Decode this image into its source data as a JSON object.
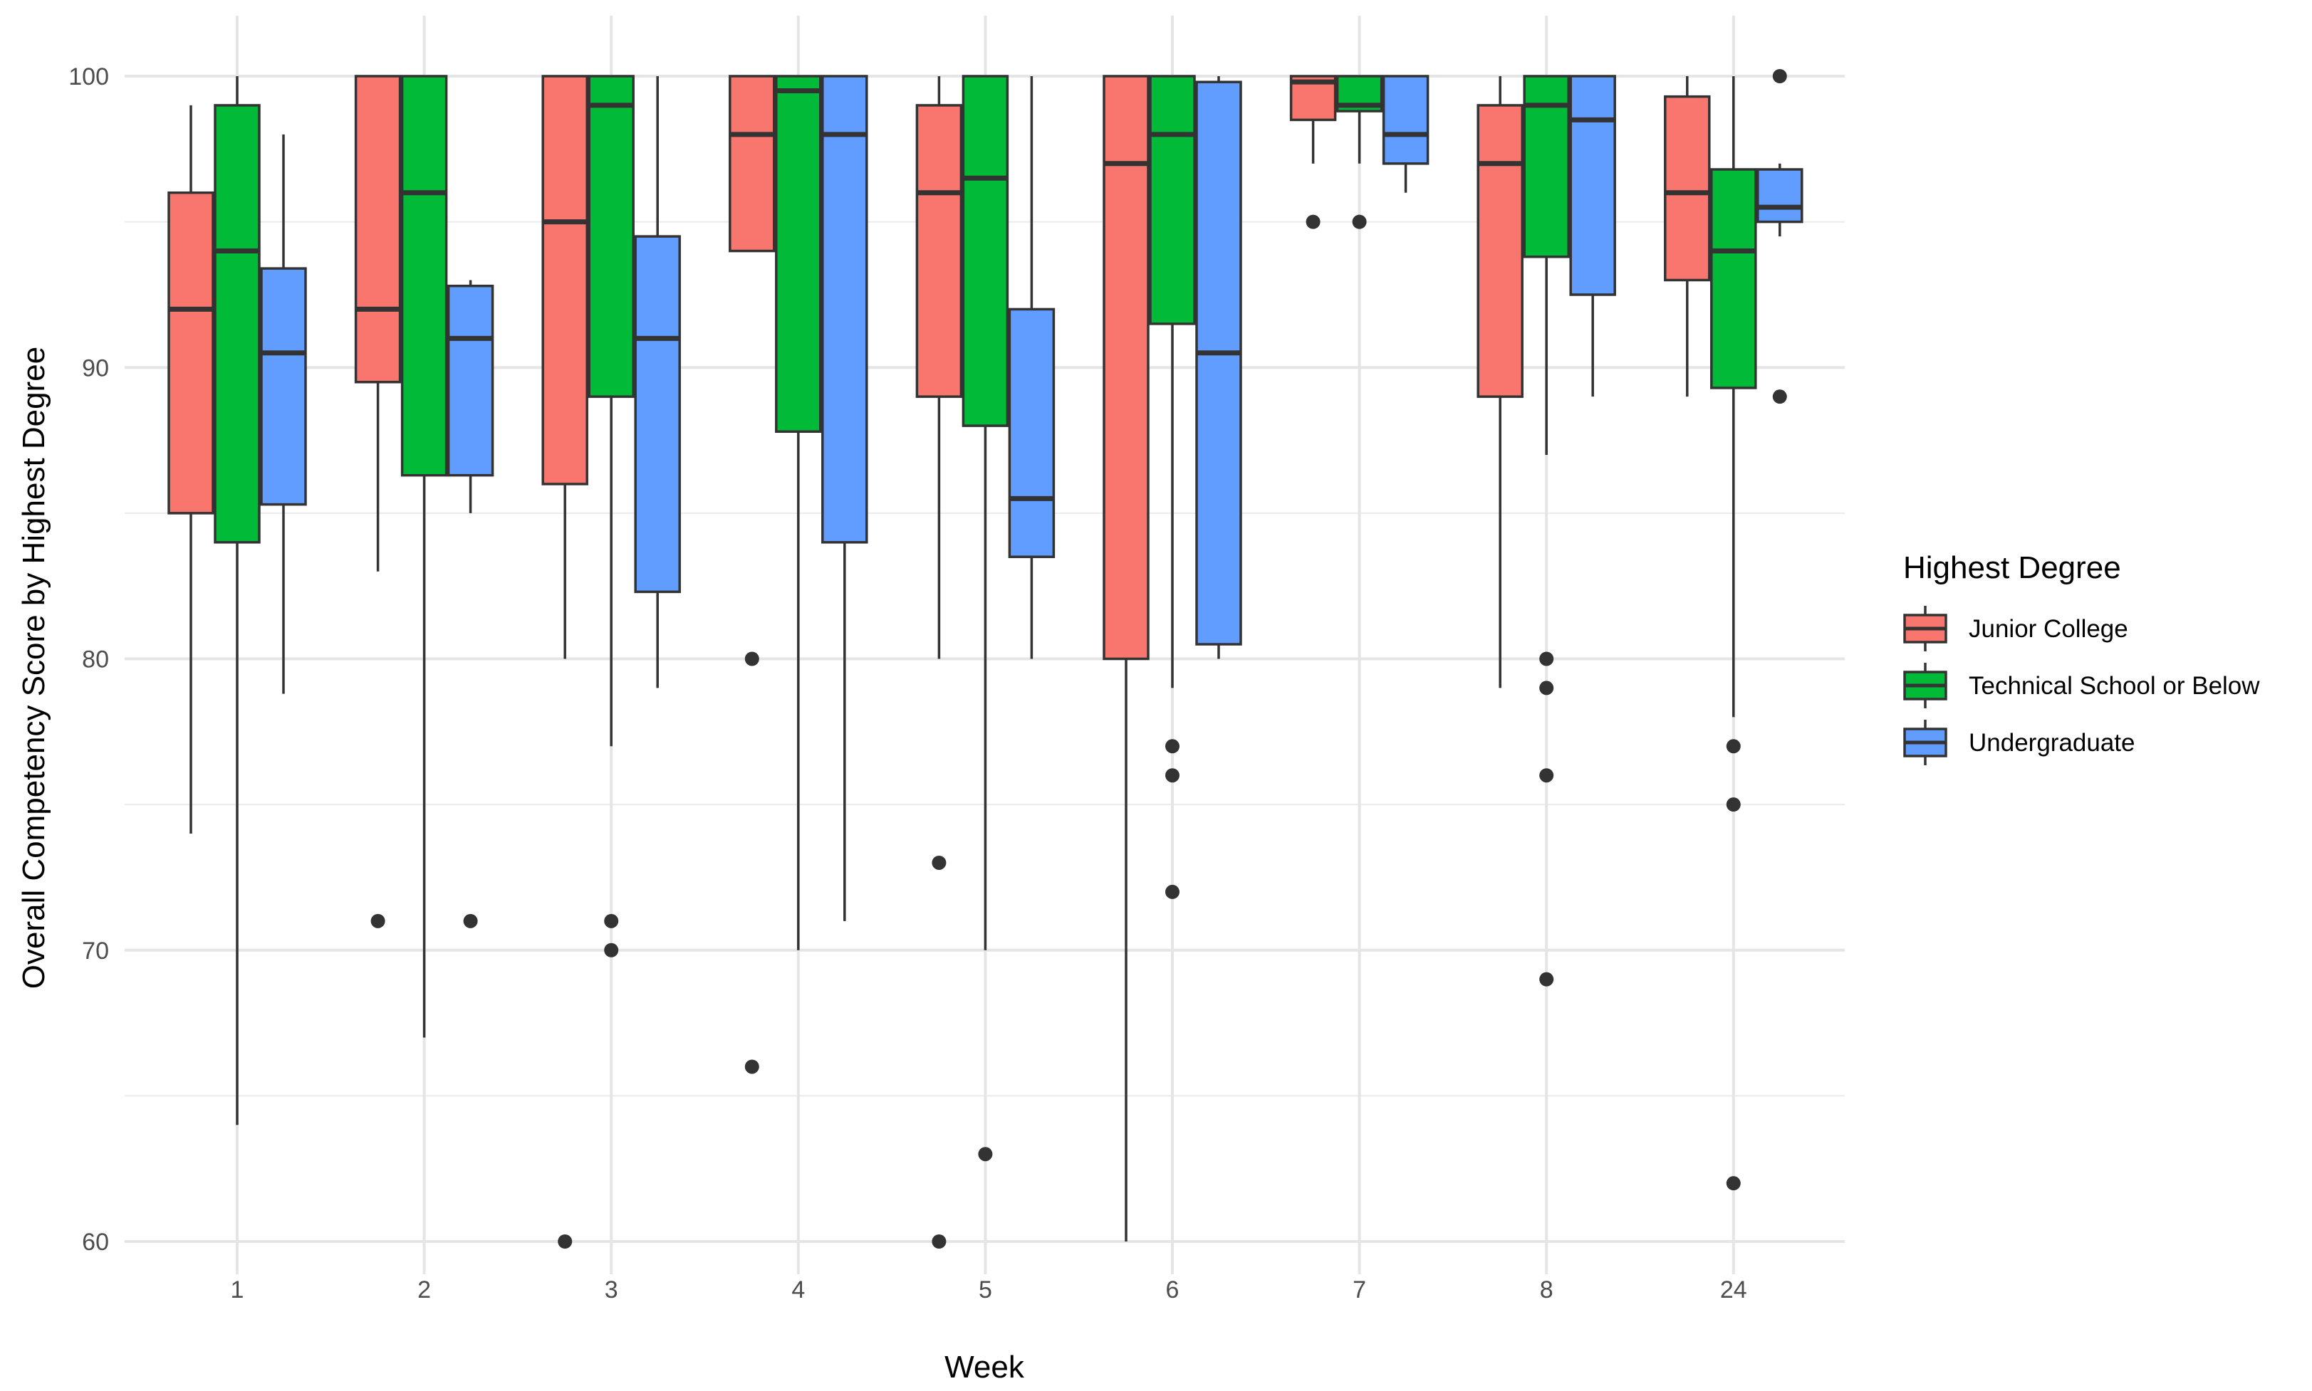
{
  "chart_data": {
    "type": "boxplot",
    "title": "",
    "xlabel": "Week",
    "ylabel": "Overall Competency Score by Highest Degree",
    "ylim": [
      58,
      102
    ],
    "yticks": [
      60,
      70,
      80,
      90,
      100
    ],
    "categories": [
      "1",
      "2",
      "3",
      "4",
      "5",
      "6",
      "7",
      "8",
      "24"
    ],
    "legend": {
      "title": "Highest Degree",
      "position": "right",
      "entries": [
        "Junior College",
        "Technical School or Below",
        "Undergraduate"
      ]
    },
    "series": [
      {
        "name": "Junior College",
        "color": "#F8766D",
        "boxes": [
          {
            "week": "1",
            "lower_whisker": 74,
            "q1": 85,
            "median": 92,
            "q3": 96,
            "upper_whisker": 99,
            "outliers": []
          },
          {
            "week": "2",
            "lower_whisker": 83,
            "q1": 89.5,
            "median": 92,
            "q3": 100,
            "upper_whisker": 100,
            "outliers": [
              71
            ]
          },
          {
            "week": "3",
            "lower_whisker": 80,
            "q1": 86,
            "median": 95,
            "q3": 100,
            "upper_whisker": 100,
            "outliers": [
              60
            ]
          },
          {
            "week": "4",
            "lower_whisker": 94,
            "q1": 94,
            "median": 98,
            "q3": 100,
            "upper_whisker": 100,
            "outliers": [
              80,
              66
            ]
          },
          {
            "week": "5",
            "lower_whisker": 80,
            "q1": 89,
            "median": 96,
            "q3": 99,
            "upper_whisker": 100,
            "outliers": [
              73,
              60
            ]
          },
          {
            "week": "6",
            "lower_whisker": 60,
            "q1": 80,
            "median": 97,
            "q3": 100,
            "upper_whisker": 100,
            "outliers": []
          },
          {
            "week": "7",
            "lower_whisker": 97,
            "q1": 98.5,
            "median": 99.8,
            "q3": 100,
            "upper_whisker": 100,
            "outliers": [
              95
            ]
          },
          {
            "week": "8",
            "lower_whisker": 79,
            "q1": 89,
            "median": 97,
            "q3": 99,
            "upper_whisker": 100,
            "outliers": []
          },
          {
            "week": "24",
            "lower_whisker": 89,
            "q1": 93,
            "median": 96,
            "q3": 99.3,
            "upper_whisker": 100,
            "outliers": []
          }
        ]
      },
      {
        "name": "Technical School or Below",
        "color": "#00BA38",
        "boxes": [
          {
            "week": "1",
            "lower_whisker": 64,
            "q1": 84,
            "median": 94,
            "q3": 99,
            "upper_whisker": 100,
            "outliers": []
          },
          {
            "week": "2",
            "lower_whisker": 67,
            "q1": 86.3,
            "median": 96,
            "q3": 100,
            "upper_whisker": 100,
            "outliers": []
          },
          {
            "week": "3",
            "lower_whisker": 77,
            "q1": 89,
            "median": 99,
            "q3": 100,
            "upper_whisker": 100,
            "outliers": [
              71,
              70
            ]
          },
          {
            "week": "4",
            "lower_whisker": 70,
            "q1": 87.8,
            "median": 99.5,
            "q3": 100,
            "upper_whisker": 100,
            "outliers": []
          },
          {
            "week": "5",
            "lower_whisker": 70,
            "q1": 88,
            "median": 96.5,
            "q3": 100,
            "upper_whisker": 100,
            "outliers": [
              63
            ]
          },
          {
            "week": "6",
            "lower_whisker": 79,
            "q1": 91.5,
            "median": 98,
            "q3": 100,
            "upper_whisker": 100,
            "outliers": [
              77,
              76,
              72
            ]
          },
          {
            "week": "7",
            "lower_whisker": 97,
            "q1": 98.8,
            "median": 99,
            "q3": 100,
            "upper_whisker": 100,
            "outliers": [
              95
            ]
          },
          {
            "week": "8",
            "lower_whisker": 87,
            "q1": 93.8,
            "median": 99,
            "q3": 100,
            "upper_whisker": 100,
            "outliers": [
              80,
              79,
              76,
              69
            ]
          },
          {
            "week": "24",
            "lower_whisker": 78,
            "q1": 89.3,
            "median": 94,
            "q3": 96.8,
            "upper_whisker": 100,
            "outliers": [
              77,
              75,
              62
            ]
          }
        ]
      },
      {
        "name": "Undergraduate",
        "color": "#619CFF",
        "boxes": [
          {
            "week": "1",
            "lower_whisker": 78.8,
            "q1": 85.3,
            "median": 90.5,
            "q3": 93.4,
            "upper_whisker": 98,
            "outliers": []
          },
          {
            "week": "2",
            "lower_whisker": 85,
            "q1": 86.3,
            "median": 91,
            "q3": 92.8,
            "upper_whisker": 93,
            "outliers": [
              71
            ]
          },
          {
            "week": "3",
            "lower_whisker": 79,
            "q1": 82.3,
            "median": 91,
            "q3": 94.5,
            "upper_whisker": 100,
            "outliers": []
          },
          {
            "week": "4",
            "lower_whisker": 71,
            "q1": 84,
            "median": 98,
            "q3": 100,
            "upper_whisker": 100,
            "outliers": []
          },
          {
            "week": "5",
            "lower_whisker": 80,
            "q1": 83.5,
            "median": 85.5,
            "q3": 92,
            "upper_whisker": 100,
            "outliers": []
          },
          {
            "week": "6",
            "lower_whisker": 80,
            "q1": 80.5,
            "median": 90.5,
            "q3": 99.8,
            "upper_whisker": 100,
            "outliers": []
          },
          {
            "week": "7",
            "lower_whisker": 96,
            "q1": 97,
            "median": 98,
            "q3": 100,
            "upper_whisker": 100,
            "outliers": []
          },
          {
            "week": "8",
            "lower_whisker": 89,
            "q1": 92.5,
            "median": 98.5,
            "q3": 100,
            "upper_whisker": 100,
            "outliers": []
          },
          {
            "week": "24",
            "lower_whisker": 94.5,
            "q1": 95,
            "median": 95.5,
            "q3": 96.8,
            "upper_whisker": 97,
            "outliers": [
              100,
              89
            ]
          }
        ]
      }
    ]
  }
}
